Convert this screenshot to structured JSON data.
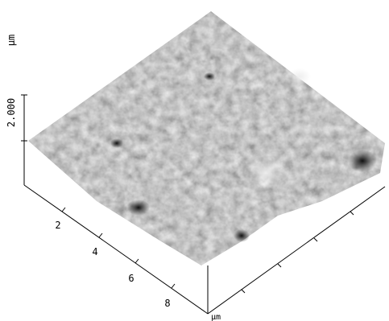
{
  "z_axis": {
    "tick_label": "2.000",
    "unit": "µm"
  },
  "x_axis": {
    "ticks": [
      "2",
      "4",
      "6",
      "8"
    ],
    "unit": "µm"
  }
}
